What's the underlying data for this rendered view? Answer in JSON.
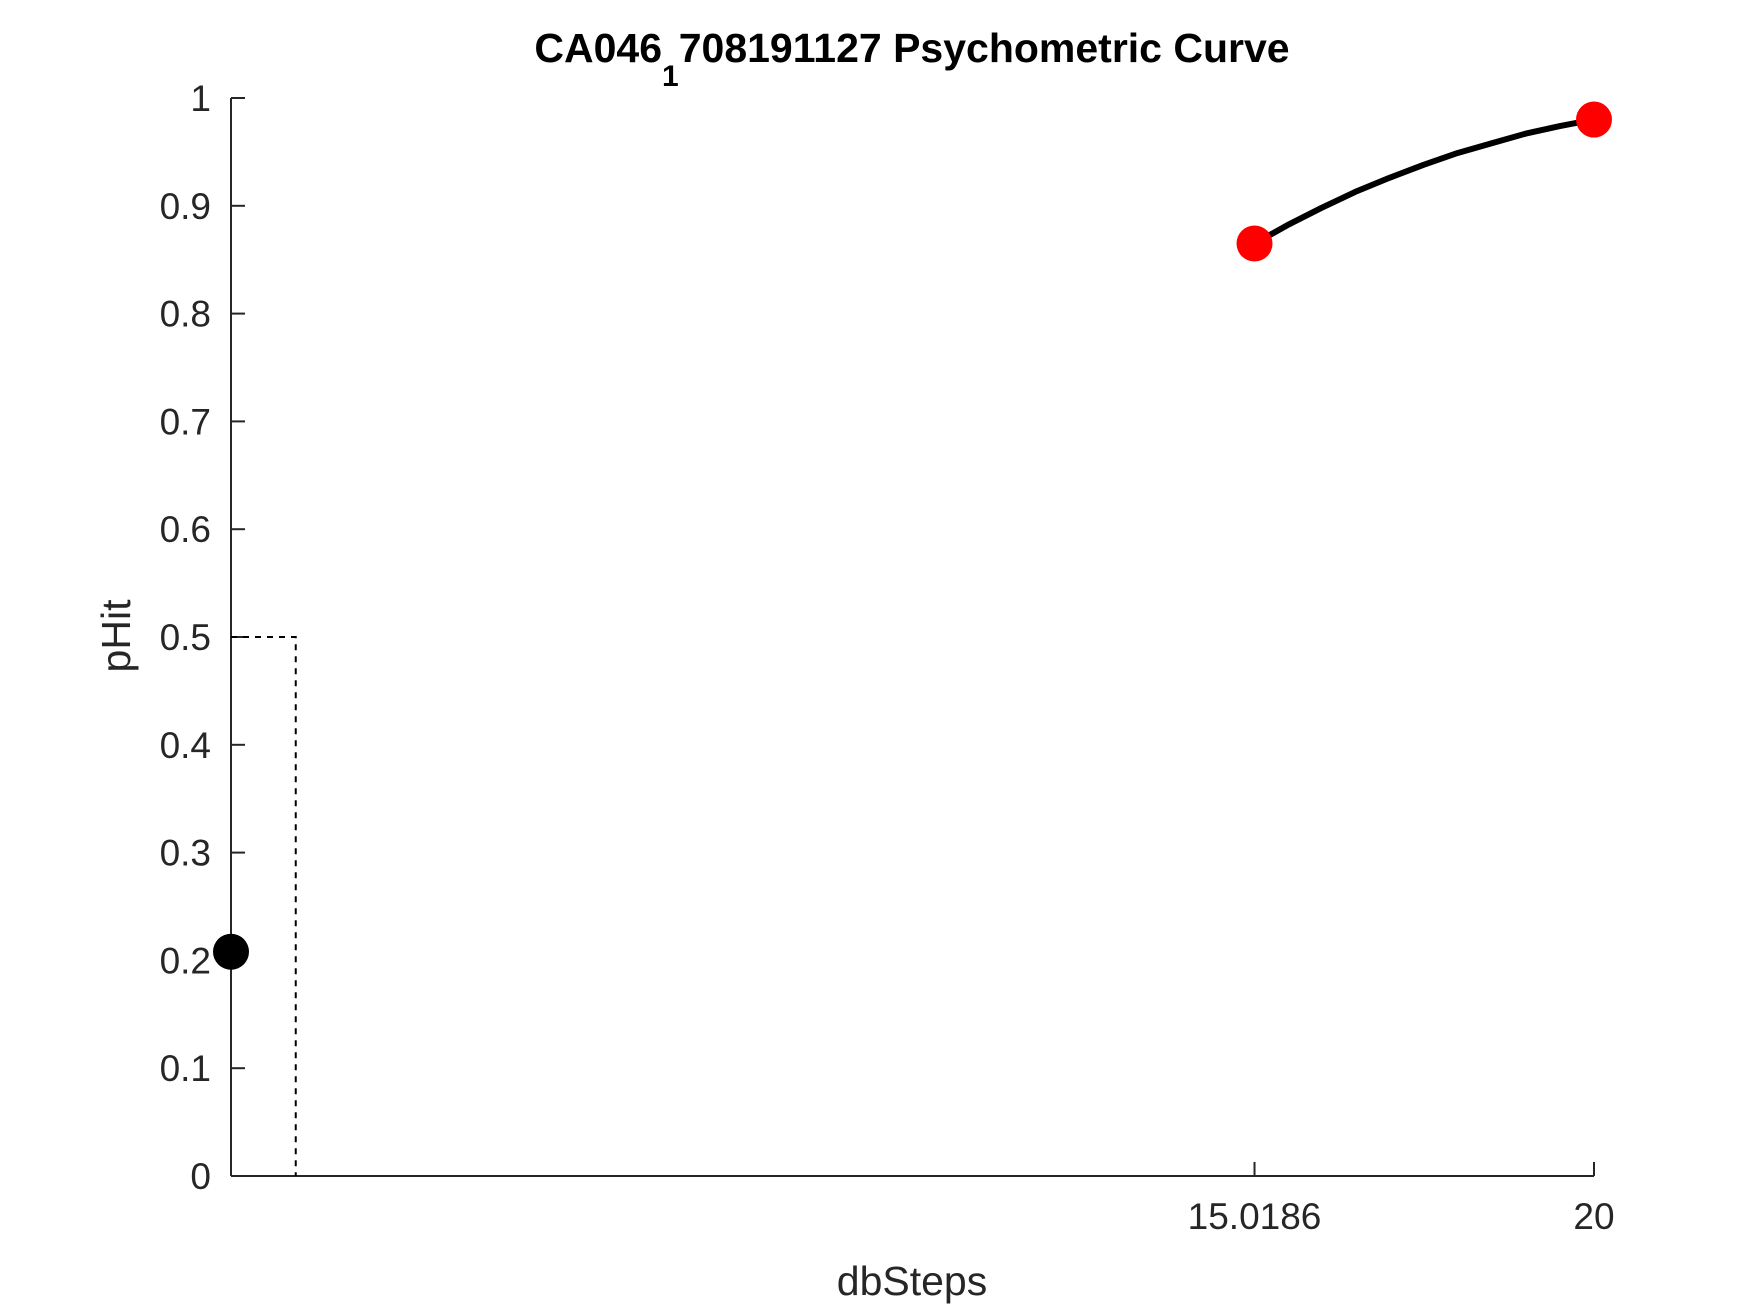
{
  "chart_data": {
    "type": "line",
    "title": {
      "prefix": "CA046",
      "subscript": "1",
      "suffix": "708191127 Psychometric Curve"
    },
    "xlabel": "dbSteps",
    "ylabel": "pHit",
    "xlim": [
      0,
      20
    ],
    "ylim": [
      0,
      1
    ],
    "x_ticks": [
      {
        "value": 15.0186,
        "label": "15.0186"
      },
      {
        "value": 20,
        "label": "20"
      }
    ],
    "y_ticks": [
      {
        "value": 0,
        "label": "0"
      },
      {
        "value": 0.1,
        "label": "0.1"
      },
      {
        "value": 0.2,
        "label": "0.2"
      },
      {
        "value": 0.3,
        "label": "0.3"
      },
      {
        "value": 0.4,
        "label": "0.4"
      },
      {
        "value": 0.5,
        "label": "0.5"
      },
      {
        "value": 0.6,
        "label": "0.6"
      },
      {
        "value": 0.7,
        "label": "0.7"
      },
      {
        "value": 0.8,
        "label": "0.8"
      },
      {
        "value": 0.9,
        "label": "0.9"
      },
      {
        "value": 1,
        "label": "1"
      }
    ],
    "grid": false,
    "fit_curve": {
      "color": "#000000",
      "x": [
        15.0186,
        15.5,
        16,
        16.5,
        17,
        17.5,
        18,
        18.5,
        19,
        19.5,
        20
      ],
      "y": [
        0.865,
        0.882,
        0.898,
        0.913,
        0.926,
        0.938,
        0.949,
        0.958,
        0.967,
        0.974,
        0.98
      ]
    },
    "points": [
      {
        "x": 0,
        "y": 0.208,
        "color": "#000000"
      },
      {
        "x": 15.0186,
        "y": 0.865,
        "color": "#ff0000"
      },
      {
        "x": 20,
        "y": 0.98,
        "color": "#ff0000"
      }
    ],
    "threshold_guide": {
      "x": 0.95,
      "y": 0.5,
      "style": "dashed",
      "color": "#000000"
    }
  }
}
